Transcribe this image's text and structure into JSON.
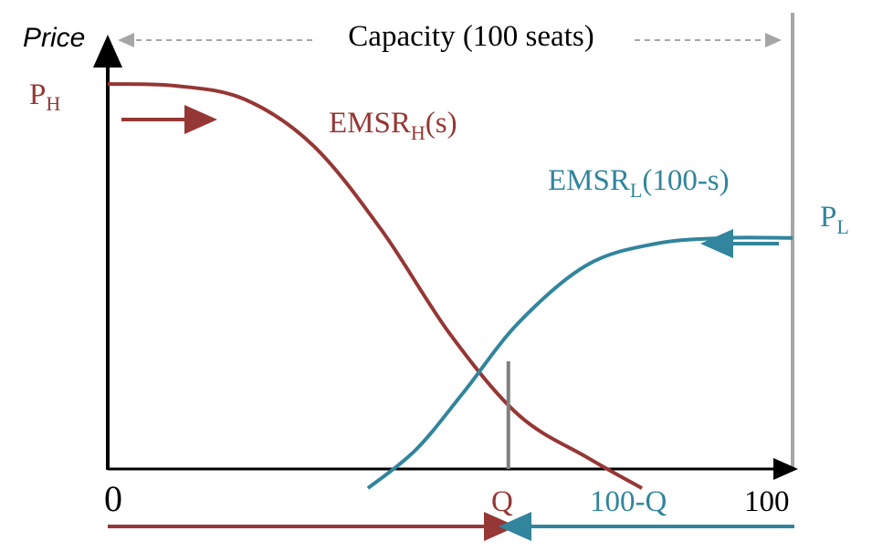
{
  "labels": {
    "y_axis": "Price",
    "capacity": "Capacity (100 seats)",
    "p_h_main": "P",
    "p_h_sub": "H",
    "p_l_main": "P",
    "p_l_sub": "L",
    "emsr_h_main": "EMSR",
    "emsr_h_sub": "H",
    "emsr_h_tail": "(s)",
    "emsr_l_main": "EMSR",
    "emsr_l_sub": "L",
    "emsr_l_tail": "(100-s)",
    "x_zero": "0",
    "x_q": "Q",
    "x_100_minus_q": "100-Q",
    "x_100": "100"
  },
  "colors": {
    "high_fare": "#953735",
    "low_fare": "#31859c",
    "axis": "#000000",
    "capacity_guide": "#a6a6a6",
    "q_line": "#7f7f7f"
  },
  "chart_data": {
    "type": "line",
    "xlabel": "",
    "ylabel": "Price",
    "xlim": [
      0,
      100
    ],
    "x_ticks": [
      "0",
      "Q",
      "100"
    ],
    "series": [
      {
        "name": "EMSR_H(s)",
        "color": "#953735",
        "x": [
          0,
          10,
          20,
          30,
          40,
          50,
          60,
          70,
          78
        ],
        "y": [
          100,
          99.5,
          96,
          84,
          62,
          35,
          14,
          3,
          -5
        ]
      },
      {
        "name": "EMSR_L(100-s)",
        "color": "#31859c",
        "x": [
          38,
          45,
          52,
          60,
          70,
          80,
          90,
          100
        ],
        "y": [
          -5,
          5,
          20,
          38,
          53,
          58.5,
          60,
          60
        ]
      }
    ],
    "intersection": {
      "label": "Q",
      "x": 58.5,
      "y": 27
    },
    "annotations": [
      "Capacity (100 seats)",
      "P_H",
      "P_L",
      "100-Q"
    ]
  }
}
